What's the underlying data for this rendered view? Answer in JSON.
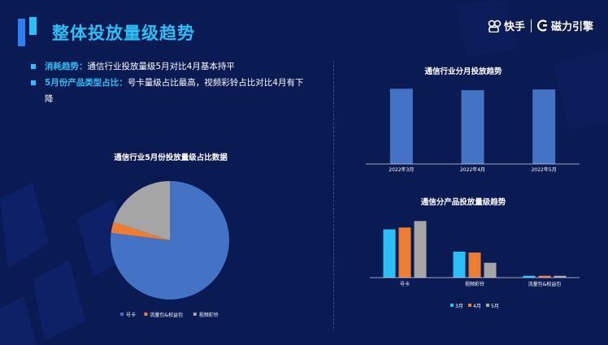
{
  "header": {
    "title": "整体投放量级趋势",
    "brand_kuaishou": "快手",
    "brand_cili": "磁力引擎"
  },
  "bullets": [
    {
      "label": "消耗趋势：",
      "text": "通信行业投放量级5月对比4月基本持平"
    },
    {
      "label": "5月份产品类型占比：",
      "text": "号卡量级占比最高，视频彩铃占比对比4月有下降"
    }
  ],
  "colors": {
    "background": "#0a1a52",
    "accent": "#2bc0f5",
    "bar_single": "#4472c4",
    "haoka": "#4472c4",
    "tongzhuan": "#ed7d31",
    "video_ringtone": "#a5a5a5",
    "month3": "#2bc0f5",
    "month4": "#ed7d31",
    "month5": "#a5a5a5"
  },
  "chart_data": [
    {
      "id": "pie",
      "type": "pie",
      "title": "通信行业5月份投放量级占比数据",
      "labels": [
        "号卡",
        "流量包&权益包",
        "视频彩铃"
      ],
      "values": [
        77,
        3,
        20
      ],
      "colors": [
        "#4472c4",
        "#ed7d31",
        "#a5a5a5"
      ],
      "legend": "bottom"
    },
    {
      "id": "monthly",
      "type": "bar",
      "title": "通信行业分月投放趋势",
      "categories": [
        "2022年3月",
        "2022年4月",
        "2022年5月"
      ],
      "values": [
        100,
        98,
        99
      ],
      "ylim": [
        0,
        110
      ],
      "color": "#4472c4",
      "grid": false
    },
    {
      "id": "product",
      "type": "bar",
      "title": "通信分产品投放量级趋势",
      "categories": [
        "号卡",
        "视频彩铃",
        "流量包&权益包"
      ],
      "series": [
        {
          "name": "3月",
          "values": [
            52,
            28,
            2
          ],
          "color": "#2bc0f5"
        },
        {
          "name": "4月",
          "values": [
            54,
            27,
            2
          ],
          "color": "#ed7d31"
        },
        {
          "name": "5月",
          "values": [
            61,
            16,
            2
          ],
          "color": "#a5a5a5"
        }
      ],
      "ylim": [
        0,
        70
      ],
      "legend": "bottom",
      "grid": false
    }
  ]
}
